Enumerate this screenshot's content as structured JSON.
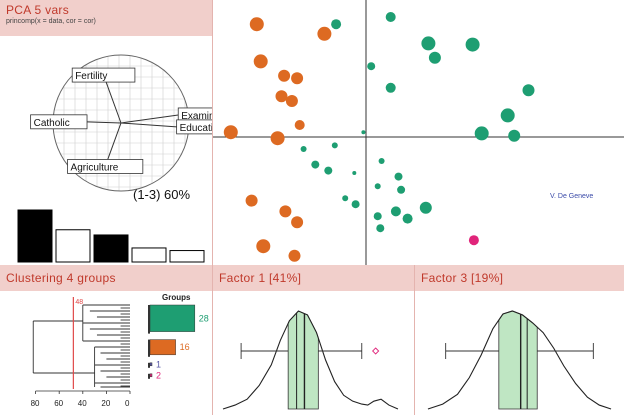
{
  "pca_panel": {
    "title": "PCA  5 vars",
    "call": "princomp(x = data, cor = cor)",
    "variables": [
      {
        "label": "Fertility",
        "angle": 110,
        "len": 0.75
      },
      {
        "label": "Examination",
        "angle": 8,
        "len": 0.85
      },
      {
        "label": "Education",
        "angle": -4,
        "len": 0.82
      },
      {
        "label": "Catholic",
        "angle": 178,
        "len": 0.5
      },
      {
        "label": "Agriculture",
        "angle": 250,
        "len": 0.68
      }
    ],
    "variance_label": "(1-3) 60%",
    "eigen_bars": [
      {
        "value": 1.0,
        "color": "#000000"
      },
      {
        "value": 0.62,
        "color": "#ffffff"
      },
      {
        "value": 0.52,
        "color": "#000000"
      },
      {
        "value": 0.27,
        "color": "#ffffff"
      },
      {
        "value": 0.22,
        "color": "#ffffff"
      }
    ]
  },
  "scatter_panel": {
    "point_label": "V. De Geneve",
    "colors": {
      "orange": "#dd6a22",
      "green": "#1e9e72",
      "magenta": "#e0247a"
    },
    "points": [
      {
        "x": -0.84,
        "y": 0.94,
        "r": 7,
        "g": "orange"
      },
      {
        "x": -0.32,
        "y": 0.86,
        "r": 7,
        "g": "orange"
      },
      {
        "x": -0.81,
        "y": 0.63,
        "r": 7,
        "g": "orange"
      },
      {
        "x": -0.63,
        "y": 0.51,
        "r": 6,
        "g": "orange"
      },
      {
        "x": -0.53,
        "y": 0.49,
        "r": 6,
        "g": "orange"
      },
      {
        "x": -0.65,
        "y": 0.34,
        "r": 6,
        "g": "orange"
      },
      {
        "x": -0.57,
        "y": 0.3,
        "r": 6,
        "g": "orange"
      },
      {
        "x": -0.51,
        "y": 0.1,
        "r": 5,
        "g": "orange"
      },
      {
        "x": -1.04,
        "y": 0.04,
        "r": 7,
        "g": "orange"
      },
      {
        "x": -0.68,
        "y": -0.01,
        "r": 7,
        "g": "orange"
      },
      {
        "x": -0.88,
        "y": -0.53,
        "r": 6,
        "g": "orange"
      },
      {
        "x": -0.62,
        "y": -0.62,
        "r": 6,
        "g": "orange"
      },
      {
        "x": -0.53,
        "y": -0.71,
        "r": 6,
        "g": "orange"
      },
      {
        "x": -0.79,
        "y": -0.91,
        "r": 7,
        "g": "orange"
      },
      {
        "x": -0.55,
        "y": -0.99,
        "r": 6,
        "g": "orange"
      },
      {
        "x": 0.19,
        "y": 1.0,
        "r": 5,
        "g": "green"
      },
      {
        "x": -0.23,
        "y": 0.94,
        "r": 5,
        "g": "green"
      },
      {
        "x": 0.48,
        "y": 0.78,
        "r": 7,
        "g": "green"
      },
      {
        "x": 0.82,
        "y": 0.77,
        "r": 7,
        "g": "green"
      },
      {
        "x": 0.53,
        "y": 0.66,
        "r": 6,
        "g": "green"
      },
      {
        "x": 0.04,
        "y": 0.59,
        "r": 4,
        "g": "green"
      },
      {
        "x": 0.19,
        "y": 0.41,
        "r": 5,
        "g": "green"
      },
      {
        "x": 1.25,
        "y": 0.39,
        "r": 6,
        "g": "green"
      },
      {
        "x": 1.09,
        "y": 0.18,
        "r": 7,
        "g": "green"
      },
      {
        "x": 0.89,
        "y": 0.03,
        "r": 7,
        "g": "green"
      },
      {
        "x": 1.14,
        "y": 0.01,
        "r": 6,
        "g": "green"
      },
      {
        "x": -0.02,
        "y": 0.04,
        "r": 2,
        "g": "green"
      },
      {
        "x": -0.24,
        "y": -0.07,
        "r": 3,
        "g": "green"
      },
      {
        "x": -0.48,
        "y": -0.1,
        "r": 3,
        "g": "green"
      },
      {
        "x": -0.39,
        "y": -0.23,
        "r": 4,
        "g": "green"
      },
      {
        "x": -0.29,
        "y": -0.28,
        "r": 4,
        "g": "green"
      },
      {
        "x": 0.12,
        "y": -0.2,
        "r": 3,
        "g": "green"
      },
      {
        "x": -0.09,
        "y": -0.3,
        "r": 2,
        "g": "green"
      },
      {
        "x": 0.25,
        "y": -0.33,
        "r": 4,
        "g": "green"
      },
      {
        "x": 0.27,
        "y": -0.44,
        "r": 4,
        "g": "green"
      },
      {
        "x": 0.09,
        "y": -0.41,
        "r": 3,
        "g": "green"
      },
      {
        "x": -0.16,
        "y": -0.51,
        "r": 3,
        "g": "green"
      },
      {
        "x": -0.08,
        "y": -0.56,
        "r": 4,
        "g": "green"
      },
      {
        "x": 0.23,
        "y": -0.62,
        "r": 5,
        "g": "green"
      },
      {
        "x": 0.46,
        "y": -0.59,
        "r": 6,
        "g": "green"
      },
      {
        "x": 0.09,
        "y": -0.66,
        "r": 4,
        "g": "green"
      },
      {
        "x": 0.32,
        "y": -0.68,
        "r": 5,
        "g": "green"
      },
      {
        "x": 0.11,
        "y": -0.76,
        "r": 4,
        "g": "green"
      },
      {
        "x": 0.83,
        "y": -0.86,
        "r": 5,
        "g": "magenta"
      },
      {
        "x": 0.65,
        "y": -1.25,
        "r": 6,
        "g": "magenta"
      }
    ]
  },
  "clustering_panel": {
    "title": "Clustering  4 groups",
    "axis_ticks": [
      "80",
      "60",
      "40",
      "20",
      "0"
    ],
    "cut_height_label": "48",
    "groups_title": "Groups",
    "groups": [
      {
        "count": 28,
        "label": "28",
        "color": "#1e9e72"
      },
      {
        "count": 16,
        "label": "16",
        "color": "#dd6a22"
      },
      {
        "count": 1,
        "label": "1",
        "color": "#5a58a6"
      },
      {
        "count": 2,
        "label": "2",
        "color": "#e0247a"
      }
    ]
  },
  "factor1_panel": {
    "title": "Factor 1 [41%]",
    "box": {
      "q1": -0.22,
      "median": 0.05,
      "mean": -0.08,
      "q3": 0.28,
      "whisker_low": -1.0,
      "whisker_high": 1.0
    },
    "density": [
      [
        -1.3,
        0.0
      ],
      [
        -1.1,
        0.04
      ],
      [
        -0.9,
        0.1
      ],
      [
        -0.7,
        0.24
      ],
      [
        -0.5,
        0.45
      ],
      [
        -0.35,
        0.7
      ],
      [
        -0.2,
        0.9
      ],
      [
        -0.05,
        1.0
      ],
      [
        0.1,
        0.96
      ],
      [
        0.25,
        0.78
      ],
      [
        0.4,
        0.5
      ],
      [
        0.55,
        0.28
      ],
      [
        0.7,
        0.14
      ],
      [
        0.85,
        0.08
      ],
      [
        1.0,
        0.05
      ],
      [
        1.1,
        0.04
      ],
      [
        1.2,
        0.08
      ],
      [
        1.32,
        0.1
      ],
      [
        1.45,
        0.04
      ],
      [
        1.6,
        0.0
      ]
    ],
    "outlier": 1.23
  },
  "factor3_panel": {
    "title": "Factor 3 [19%]",
    "box": {
      "q1": -0.35,
      "median": 0.02,
      "mean": 0.13,
      "q3": 0.3,
      "whisker_low": -1.25,
      "whisker_high": 1.25
    },
    "density": [
      [
        -1.55,
        0.0
      ],
      [
        -1.3,
        0.05
      ],
      [
        -1.05,
        0.15
      ],
      [
        -0.85,
        0.32
      ],
      [
        -0.65,
        0.55
      ],
      [
        -0.45,
        0.82
      ],
      [
        -0.28,
        0.97
      ],
      [
        -0.12,
        1.0
      ],
      [
        0.05,
        0.96
      ],
      [
        0.22,
        0.88
      ],
      [
        0.4,
        0.78
      ],
      [
        0.58,
        0.62
      ],
      [
        0.75,
        0.44
      ],
      [
        0.95,
        0.26
      ],
      [
        1.15,
        0.12
      ],
      [
        1.35,
        0.04
      ],
      [
        1.55,
        0.0
      ]
    ]
  }
}
